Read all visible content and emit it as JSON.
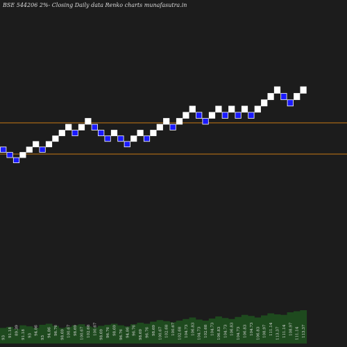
{
  "chart_data": {
    "type": "renko",
    "title": "BSE 544206  2%-  Closing Daily data  Renko  charts munafasutra.in",
    "values": [
      93.0,
      91.18,
      89.39,
      91.18,
      93.0,
      94.86,
      93.0,
      94.86,
      96.76,
      98.69,
      100.67,
      98.69,
      100.67,
      102.68,
      100.67,
      98.69,
      96.76,
      98.69,
      96.76,
      94.86,
      96.76,
      98.69,
      96.76,
      98.69,
      100.67,
      102.68,
      100.67,
      102.68,
      104.73,
      106.83,
      104.73,
      102.68,
      104.73,
      106.83,
      104.73,
      106.83,
      104.73,
      106.83,
      104.73,
      106.83,
      108.97,
      111.14,
      113.37,
      111.14,
      108.97,
      111.14,
      113.37
    ],
    "volumes": [
      30,
      32,
      28,
      35,
      33,
      30,
      36,
      38,
      34,
      30,
      32,
      35,
      37,
      33,
      31,
      34,
      36,
      38,
      35,
      33,
      37,
      40,
      38,
      42,
      45,
      43,
      41,
      44,
      47,
      50,
      46,
      44,
      48,
      52,
      49,
      47,
      51,
      55,
      53,
      50,
      54,
      58,
      56,
      55,
      60,
      62,
      64
    ],
    "up_color": "#ffffff",
    "down_color": "#1a1aff",
    "first_direction": "down",
    "volume_color": "#1e4a1e",
    "line_color": "#c87a14",
    "lines": [
      102.15,
      91.48
    ],
    "ylim": [
      73,
      137
    ],
    "vlim": [
      0,
      100
    ]
  }
}
